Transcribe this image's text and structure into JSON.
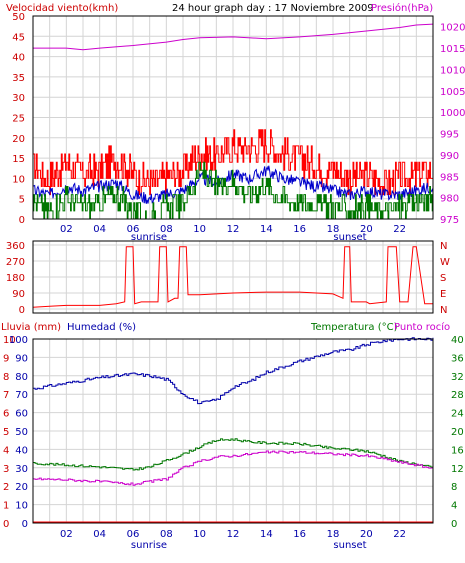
{
  "header": {
    "wind_label": "Velocidad viento(kmh)",
    "title": "24 hour graph day : 17 Noviembre 2009",
    "pressure_label": "Presión(hPa)"
  },
  "middle": {
    "compass": [
      "N",
      "W",
      "S",
      "E",
      "N"
    ]
  },
  "bottom_header": {
    "rain_label": "Lluvia (mm)",
    "humidity_label": "Humedad (%)",
    "temperature_label": "Temperatura (°C)",
    "dewpoint_label": "Punto rocío"
  },
  "labels": {
    "sunrise": "sunrise",
    "sunset": "sunset"
  },
  "colors": {
    "wind": "#ff0000",
    "wind_avg": "#0000cc",
    "wind_low": "#007700",
    "pressure": "#cc00cc",
    "direction": "#ff0000",
    "humidity": "#0000aa",
    "temperature": "#007700",
    "dewpoint": "#cc00cc",
    "rain": "#ff0000",
    "axis_red": "#cc0000",
    "axis_blue": "#0000aa",
    "axis_green": "#007700",
    "axis_magenta": "#cc00cc"
  },
  "chart_data": [
    {
      "type": "line",
      "id": "wind-pressure",
      "x_ticks": [
        "02",
        "04",
        "06",
        "08",
        "10",
        "12",
        "14",
        "16",
        "18",
        "20",
        "22"
      ],
      "y_left_ticks": [
        "0",
        "5",
        "10",
        "15",
        "20",
        "25",
        "30",
        "35",
        "40",
        "45",
        "50"
      ],
      "y_left_range": [
        0,
        50
      ],
      "y_right_ticks": [
        "975",
        "980",
        "985",
        "990",
        "995",
        "1000",
        "1005",
        "1010",
        "1015",
        "1020"
      ],
      "y_right_range": [
        975,
        1022.5
      ],
      "grid": true,
      "series": [
        {
          "axis": "left",
          "x": [
            0,
            1,
            2,
            3,
            4,
            5,
            6,
            7,
            8,
            9,
            10,
            11,
            12,
            13,
            14,
            15,
            16,
            17,
            18,
            19,
            20,
            21,
            22,
            23,
            24
          ],
          "values": [
            13,
            10,
            14,
            11,
            12,
            15,
            11,
            9,
            10,
            12,
            16,
            15,
            18,
            17,
            19,
            16,
            15,
            13,
            12,
            10,
            11,
            9,
            10,
            11,
            12
          ]
        },
        {
          "axis": "left",
          "x": [
            0,
            1,
            2,
            3,
            4,
            5,
            6,
            7,
            8,
            9,
            10,
            11,
            12,
            13,
            14,
            15,
            16,
            17,
            18,
            19,
            20,
            21,
            22,
            23,
            24
          ],
          "values": [
            7,
            6,
            8,
            7,
            8,
            9,
            6,
            5,
            6,
            7,
            10,
            9,
            11,
            10,
            12,
            10,
            9,
            8,
            7,
            6,
            7,
            6,
            6,
            7,
            8
          ]
        },
        {
          "axis": "left",
          "x": [
            0,
            1,
            2,
            3,
            4,
            5,
            6,
            7,
            8,
            9,
            10,
            11,
            12,
            13,
            14,
            15,
            16,
            17,
            18,
            19,
            20,
            21,
            22,
            23,
            24
          ],
          "values": [
            4,
            2,
            5,
            3,
            4,
            6,
            2,
            0,
            3,
            4,
            12,
            8,
            9,
            6,
            8,
            5,
            4,
            4,
            3,
            2,
            3,
            2,
            3,
            4,
            5
          ]
        },
        {
          "axis": "right",
          "x": [
            0,
            2,
            3,
            4,
            6,
            8,
            9,
            10,
            12,
            14,
            16,
            18,
            20,
            22,
            23,
            24
          ],
          "values": [
            1015,
            1015,
            1014.6,
            1015,
            1015.6,
            1016.4,
            1017,
            1017.4,
            1017.6,
            1017.2,
            1017.6,
            1018.2,
            1019,
            1019.8,
            1020.4,
            1020.6
          ]
        }
      ]
    },
    {
      "type": "line",
      "id": "wind-direction",
      "x_ticks": [
        "02",
        "04",
        "06",
        "08",
        "10",
        "12",
        "14",
        "16",
        "18",
        "20",
        "22"
      ],
      "y_ticks": [
        "0",
        "90",
        "180",
        "270",
        "360"
      ],
      "y_range": [
        0,
        360
      ],
      "grid": true,
      "series": [
        {
          "x": [
            0,
            1,
            2,
            3,
            4,
            5,
            5.5,
            5.6,
            6,
            6.1,
            6.5,
            7.5,
            7.6,
            8,
            8.1,
            8.5,
            8.7,
            8.8,
            9.2,
            9.3,
            10,
            12,
            14,
            16,
            18,
            18.6,
            18.7,
            19,
            19.1,
            20,
            20.2,
            21.2,
            21.3,
            21.8,
            22,
            22.5,
            22.8,
            23,
            23.5,
            24
          ],
          "values": [
            10,
            15,
            20,
            20,
            20,
            30,
            40,
            350,
            350,
            30,
            40,
            40,
            350,
            350,
            40,
            60,
            60,
            350,
            350,
            80,
            80,
            90,
            95,
            95,
            85,
            60,
            350,
            350,
            40,
            40,
            30,
            40,
            350,
            350,
            40,
            40,
            350,
            350,
            30,
            30
          ]
        }
      ]
    },
    {
      "type": "line",
      "id": "humidity-temperature",
      "x_ticks": [
        "02",
        "04",
        "06",
        "08",
        "10",
        "12",
        "14",
        "16",
        "18",
        "20",
        "22"
      ],
      "y_rain_ticks": [
        "0",
        "1",
        "2",
        "3",
        "4",
        "5",
        "6",
        "7",
        "8",
        "9",
        "10"
      ],
      "y_humidity_ticks": [
        "0",
        "10",
        "20",
        "30",
        "40",
        "50",
        "60",
        "70",
        "80",
        "90",
        "100"
      ],
      "y_humidity_range": [
        0,
        100
      ],
      "y_right_ticks": [
        "0",
        "4",
        "8",
        "12",
        "16",
        "20",
        "24",
        "28",
        "32",
        "36",
        "40"
      ],
      "y_right_range": [
        0,
        40
      ],
      "grid": true,
      "series": [
        {
          "axis": "humidity",
          "x": [
            0,
            2,
            4,
            5,
            6,
            7,
            8,
            9,
            10,
            11,
            12,
            13,
            14,
            16,
            18,
            19,
            20,
            21,
            22,
            23,
            24
          ],
          "values": [
            73,
            76,
            79,
            80,
            81,
            80,
            78,
            70,
            65,
            67,
            74,
            77,
            82,
            88,
            93,
            94,
            97,
            99,
            100,
            100,
            100
          ]
        },
        {
          "axis": "right",
          "x": [
            0,
            2,
            4,
            6,
            7,
            8,
            9,
            10,
            11,
            12,
            13,
            14,
            16,
            18,
            19,
            20,
            21,
            22,
            23,
            24
          ],
          "values": [
            13,
            12.6,
            12.2,
            11.6,
            12.2,
            13.6,
            15,
            16.6,
            18,
            18.2,
            17.6,
            17.4,
            17.2,
            16.2,
            16,
            15.6,
            14.6,
            13.4,
            12.8,
            12
          ]
        },
        {
          "axis": "right",
          "x": [
            0,
            2,
            4,
            6,
            7,
            8,
            9,
            10,
            11,
            12,
            13,
            14,
            16,
            18,
            19,
            20,
            21,
            22,
            23,
            24
          ],
          "values": [
            9.6,
            9.4,
            9,
            8.4,
            9,
            9.6,
            12,
            13.4,
            14.4,
            14.6,
            15,
            15.4,
            15.4,
            15,
            14.8,
            14.6,
            14,
            13.2,
            12.6,
            11.8
          ]
        },
        {
          "axis": "rain",
          "x": [
            0,
            24
          ],
          "values": [
            0,
            0
          ]
        }
      ]
    }
  ]
}
